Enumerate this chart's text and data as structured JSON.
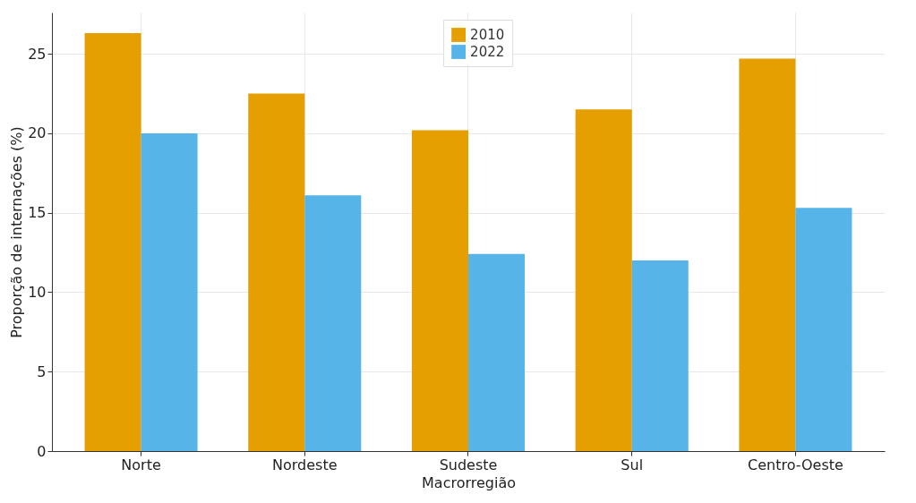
{
  "chart_data": {
    "type": "bar",
    "xlabel": "Macrorregião",
    "ylabel": "Proporção de internações (%)",
    "categories": [
      "Norte",
      "Nordeste",
      "Sudeste",
      "Sul",
      "Centro-Oeste"
    ],
    "series": [
      {
        "name": "2010",
        "color": "#e69f00",
        "values": [
          26.3,
          22.5,
          20.2,
          21.5,
          24.7
        ]
      },
      {
        "name": "2022",
        "color": "#56b4e9",
        "values": [
          20.0,
          16.1,
          12.4,
          12.0,
          15.3
        ]
      }
    ],
    "ylim": [
      0,
      27.6
    ],
    "yticks": [
      0,
      5,
      10,
      15,
      20,
      25
    ],
    "grid": true,
    "legend": "top"
  }
}
